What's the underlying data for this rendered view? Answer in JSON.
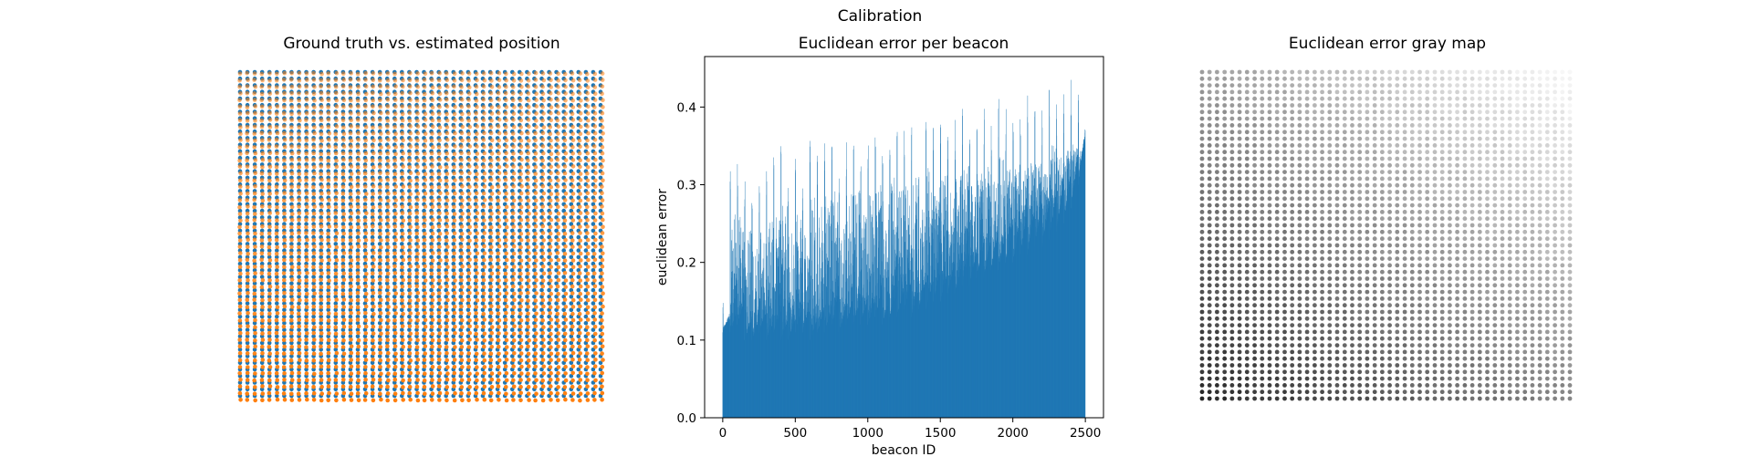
{
  "figure": {
    "suptitle": "Calibration"
  },
  "chart_data": [
    {
      "type": "scatter",
      "title": "Ground truth vs. estimated position",
      "xlabel": "",
      "ylabel": "",
      "axes_visible": false,
      "grid": false,
      "legend": "none",
      "grid_points": 50,
      "series": [
        {
          "color": "#1f77b4",
          "description_role": "ground_truth"
        },
        {
          "color": "#ff7f0e",
          "description_role": "estimated"
        }
      ]
    },
    {
      "type": "bar",
      "title": "Euclidean error per beacon",
      "xlabel": "beacon ID",
      "ylabel": "euclidean error",
      "xlim": [
        -125,
        2625
      ],
      "ylim": [
        0,
        0.465
      ],
      "xticks": [
        0,
        500,
        1000,
        1500,
        2000,
        2500
      ],
      "xtick_labels": [
        "0",
        "500",
        "1000",
        "1500",
        "2000",
        "2500"
      ],
      "yticks": [
        0.0,
        0.1,
        0.2,
        0.3,
        0.4
      ],
      "ytick_labels": [
        "0.0",
        "0.1",
        "0.2",
        "0.3",
        "0.4"
      ],
      "grid": false,
      "legend": "none",
      "bar_color": "#1f77b4",
      "n_beacons": 2500,
      "group_size": 50,
      "group_peaks": [
        0.15,
        0.33,
        0.33,
        0.31,
        0.28,
        0.3,
        0.33,
        0.34,
        0.35,
        0.3,
        0.34,
        0.3,
        0.36,
        0.34,
        0.36,
        0.37,
        0.32,
        0.36,
        0.38,
        0.33,
        0.37,
        0.38,
        0.35,
        0.39,
        0.37,
        0.38,
        0.39,
        0.34,
        0.41,
        0.38,
        0.4,
        0.37,
        0.39,
        0.41,
        0.38,
        0.4,
        0.41,
        0.38,
        0.42,
        0.4,
        0.41,
        0.4,
        0.42,
        0.41,
        0.4,
        0.44,
        0.42,
        0.43,
        0.44,
        0.43
      ],
      "group_start": [
        0.11,
        0.11,
        0.12,
        0.1,
        0.1,
        0.11,
        0.1,
        0.11,
        0.1,
        0.1,
        0.11,
        0.11,
        0.1,
        0.11,
        0.11,
        0.12,
        0.11,
        0.12,
        0.12,
        0.12,
        0.12,
        0.13,
        0.12,
        0.13,
        0.13,
        0.14,
        0.13,
        0.14,
        0.14,
        0.15,
        0.15,
        0.16,
        0.16,
        0.17,
        0.17,
        0.18,
        0.18,
        0.19,
        0.19,
        0.2,
        0.2,
        0.21,
        0.21,
        0.22,
        0.22,
        0.23,
        0.24,
        0.25,
        0.27,
        0.3
      ]
    },
    {
      "type": "scatter",
      "title": "Euclidean error gray map",
      "xlabel": "",
      "ylabel": "",
      "axes_visible": false,
      "grid": false,
      "legend": "none",
      "grid_points": 50,
      "colormap": "gray"
    }
  ]
}
